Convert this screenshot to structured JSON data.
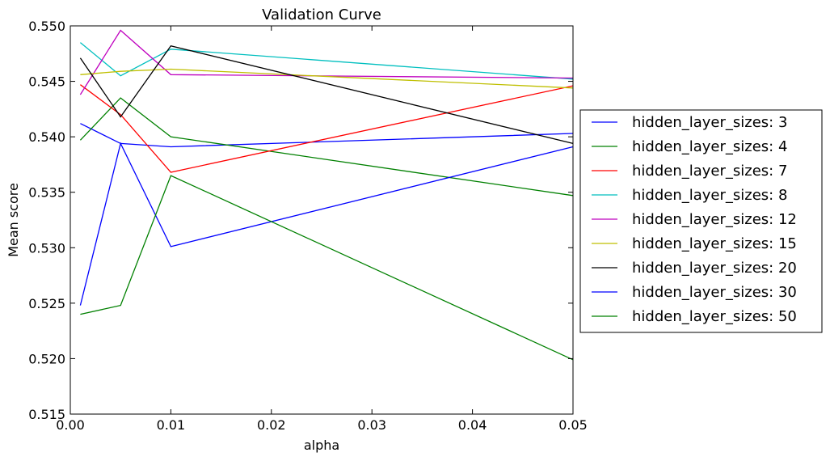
{
  "chart_data": {
    "type": "line",
    "title": "Validation Curve",
    "xlabel": "alpha",
    "ylabel": "Mean score",
    "xlim": [
      0.0,
      0.05
    ],
    "ylim": [
      0.515,
      0.55
    ],
    "xticks": [
      0.0,
      0.01,
      0.02,
      0.03,
      0.04,
      0.05
    ],
    "xtick_labels": [
      "0.00",
      "0.01",
      "0.02",
      "0.03",
      "0.04",
      "0.05"
    ],
    "yticks": [
      0.515,
      0.52,
      0.525,
      0.53,
      0.535,
      0.54,
      0.545,
      0.55
    ],
    "ytick_labels": [
      "0.515",
      "0.520",
      "0.525",
      "0.530",
      "0.535",
      "0.540",
      "0.545",
      "0.550"
    ],
    "grid": false,
    "legend_position": "right-outside",
    "x": [
      0.001,
      0.005,
      0.01,
      0.05
    ],
    "series": [
      {
        "name": "hidden_layer_sizes: 3",
        "color": "#0000ff",
        "values": [
          0.5412,
          0.5394,
          0.5391,
          0.5403
        ]
      },
      {
        "name": "hidden_layer_sizes: 4",
        "color": "#008000",
        "values": [
          0.5397,
          0.5435,
          0.54,
          0.5347
        ]
      },
      {
        "name": "hidden_layer_sizes: 7",
        "color": "#ff0000",
        "values": [
          0.5447,
          0.542,
          0.5368,
          0.5446
        ]
      },
      {
        "name": "hidden_layer_sizes: 8",
        "color": "#00bfbf",
        "values": [
          0.5485,
          0.5455,
          0.5479,
          0.5452
        ]
      },
      {
        "name": "hidden_layer_sizes: 12",
        "color": "#bf00bf",
        "values": [
          0.5438,
          0.5496,
          0.5456,
          0.5453
        ]
      },
      {
        "name": "hidden_layer_sizes: 15",
        "color": "#bfbf00",
        "values": [
          0.5456,
          0.5459,
          0.5461,
          0.5444
        ]
      },
      {
        "name": "hidden_layer_sizes: 20",
        "color": "#000000",
        "values": [
          0.5471,
          0.5418,
          0.5482,
          0.5394
        ]
      },
      {
        "name": "hidden_layer_sizes: 30",
        "color": "#0000ff",
        "values": [
          0.5248,
          0.5394,
          0.5301,
          0.5391
        ]
      },
      {
        "name": "hidden_layer_sizes: 50",
        "color": "#008000",
        "values": [
          0.524,
          0.5248,
          0.5365,
          0.5199
        ]
      }
    ]
  }
}
